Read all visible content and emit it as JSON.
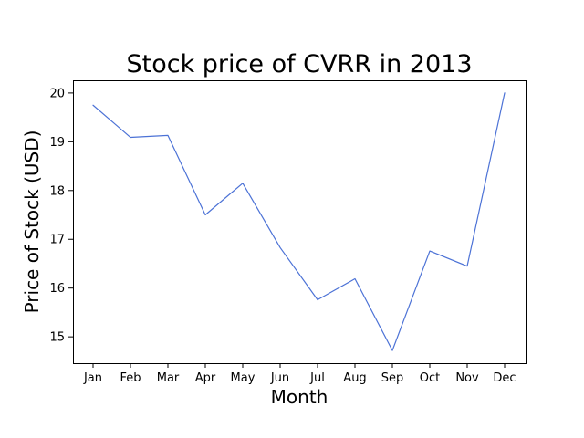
{
  "chart_data": {
    "type": "line",
    "title": "Stock price of CVRR in 2013",
    "xlabel": "Month",
    "ylabel": "Price of Stock (USD)",
    "categories": [
      "Jan",
      "Feb",
      "Mar",
      "Apr",
      "May",
      "Jun",
      "Jul",
      "Aug",
      "Sep",
      "Oct",
      "Nov",
      "Dec"
    ],
    "series": [
      {
        "values": [
          19.75,
          19.09,
          19.13,
          17.5,
          18.15,
          16.83,
          15.76,
          16.19,
          14.72,
          16.76,
          16.45,
          20.0
        ],
        "color": "#4c72d6"
      }
    ],
    "yticks": [
      15,
      16,
      17,
      18,
      19,
      20
    ],
    "ylim": [
      14.46,
      20.26
    ],
    "grid": false,
    "legend": "none"
  }
}
